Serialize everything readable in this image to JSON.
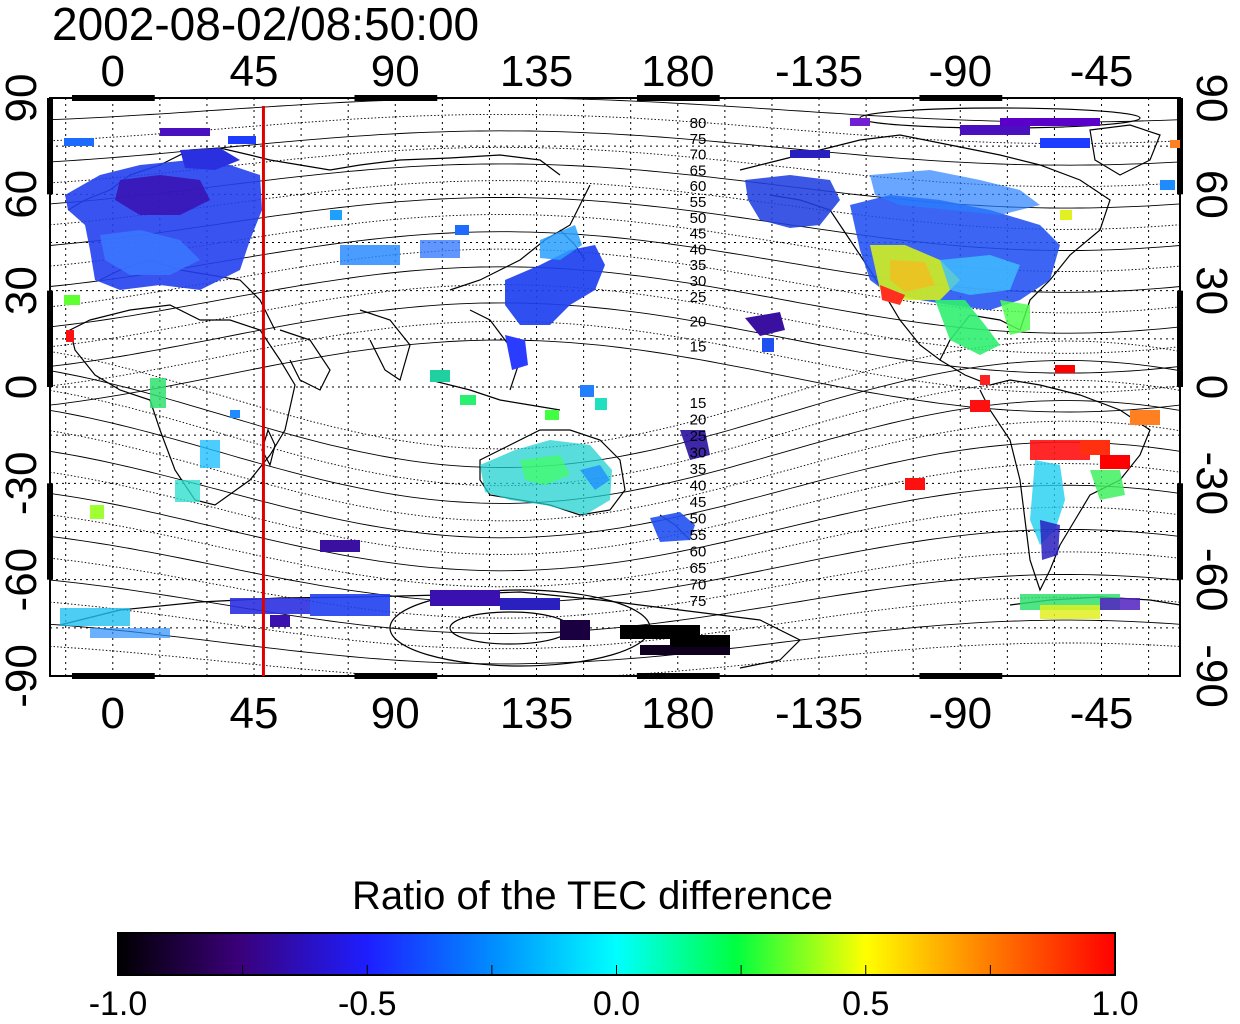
{
  "timestamp": "2002-08-02/08:50:00",
  "map": {
    "top_lon_ticks": [
      "0",
      "45",
      "90",
      "135",
      "180",
      "-135",
      "-90",
      "-45"
    ],
    "bottom_lon_ticks": [
      "0",
      "45",
      "90",
      "135",
      "180",
      "-135",
      "-90",
      "-45"
    ],
    "left_lat_ticks": [
      "90",
      "60",
      "30",
      "0",
      "-30",
      "-60",
      "-90"
    ],
    "right_lat_ticks": [
      "90",
      "60",
      "30",
      "0",
      "-30",
      "-60",
      "-90"
    ],
    "contour_labels_north": [
      "80",
      "75",
      "70",
      "65",
      "60",
      "55",
      "50",
      "45",
      "40",
      "35",
      "30",
      "25",
      "20",
      "15"
    ],
    "contour_labels_south": [
      "15",
      "20",
      "25",
      "30",
      "35",
      "40",
      "45",
      "50",
      "55",
      "60",
      "65",
      "70",
      "75"
    ],
    "marker_line_lon": 48,
    "marker_color": "#e00000",
    "lon_range": [
      -20,
      340
    ],
    "lat_range": [
      -90,
      90
    ]
  },
  "colorbar": {
    "title": "Ratio of the TEC difference",
    "ticks": [
      "-1.0",
      "-0.5",
      "0.0",
      "0.5",
      "1.0"
    ],
    "range": [
      -1.0,
      1.0
    ]
  },
  "legend_colors": {
    "low": "#000000",
    "purple": "#5a00c8",
    "blue": "#1e3cff",
    "cyan": "#00ffff",
    "green": "#00ff00",
    "yellow": "#ffff00",
    "red": "#ff0000"
  }
}
